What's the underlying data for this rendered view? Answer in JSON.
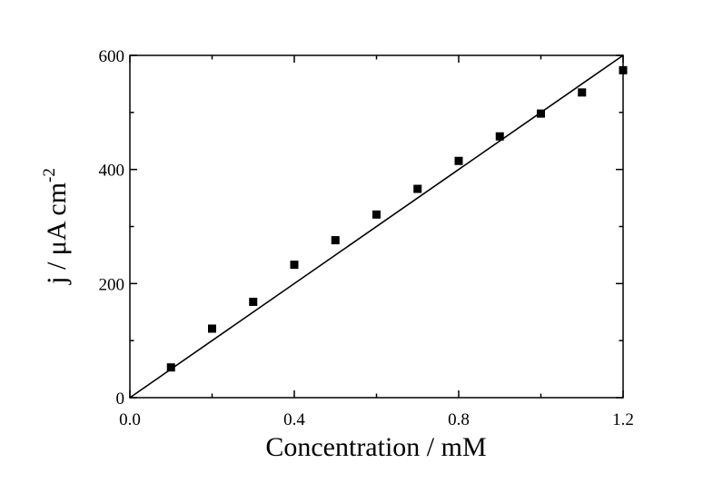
{
  "chart_data": {
    "type": "scatter",
    "xlabel": "Concentration / mM",
    "ylabel": "j / μA cm",
    "ylabel_superscript": "-2",
    "xlim": [
      0.0,
      1.2
    ],
    "ylim": [
      0,
      600
    ],
    "x_ticks": [
      0.0,
      0.4,
      0.8,
      1.2
    ],
    "x_tick_labels": [
      "0.0",
      "0.4",
      "0.8",
      "1.2"
    ],
    "x_minor_ticks": [
      0.2,
      0.6,
      1.0
    ],
    "y_ticks": [
      0,
      200,
      400,
      600
    ],
    "y_tick_labels": [
      "0",
      "200",
      "400",
      "600"
    ],
    "y_minor_ticks": [
      100,
      300,
      500
    ],
    "grid": false,
    "legend": "none",
    "series": [
      {
        "marker": "square",
        "color": "#000000",
        "x": [
          0.1,
          0.2,
          0.3,
          0.4,
          0.5,
          0.6,
          0.7,
          0.8,
          0.9,
          1.0,
          1.1,
          1.2
        ],
        "y": [
          53,
          121,
          168,
          233,
          276,
          321,
          366,
          415,
          458,
          498,
          535,
          574
        ]
      }
    ],
    "fit_line": {
      "color": "#000000",
      "x": [
        0.0,
        1.2
      ],
      "y": [
        0,
        600
      ]
    }
  }
}
